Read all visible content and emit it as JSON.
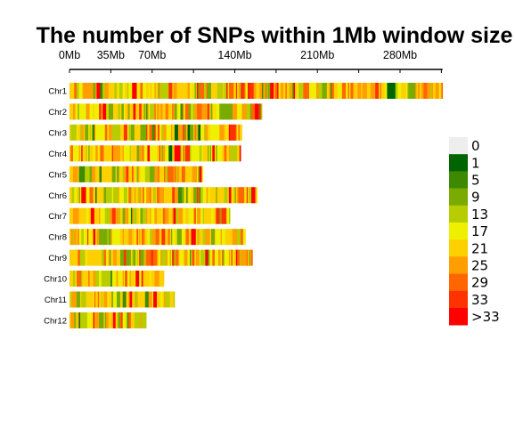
{
  "chart_data": {
    "type": "heatmap",
    "title": "The number of SNPs within 1Mb window size",
    "x_axis": {
      "unit": "Mb",
      "range": [
        0,
        316
      ],
      "ticks": [
        {
          "value": 0,
          "label": "0Mb"
        },
        {
          "value": 35,
          "label": "35Mb"
        },
        {
          "value": 70,
          "label": "70Mb"
        },
        {
          "value": 140,
          "label": "140Mb"
        },
        {
          "value": 210,
          "label": "210Mb"
        },
        {
          "value": 280,
          "label": "280Mb"
        }
      ],
      "minor_ticks": [
        105,
        175,
        245,
        315
      ]
    },
    "chromosomes": [
      {
        "name": "Chr1",
        "length_mb": 316,
        "seed": 11
      },
      {
        "name": "Chr2",
        "length_mb": 163,
        "seed": 23
      },
      {
        "name": "Chr3",
        "length_mb": 146,
        "seed": 37
      },
      {
        "name": "Chr4",
        "length_mb": 145,
        "seed": 41
      },
      {
        "name": "Chr5",
        "length_mb": 113,
        "seed": 53
      },
      {
        "name": "Chr6",
        "length_mb": 159,
        "seed": 67
      },
      {
        "name": "Chr7",
        "length_mb": 136,
        "seed": 71
      },
      {
        "name": "Chr8",
        "length_mb": 149,
        "seed": 83
      },
      {
        "name": "Chr9",
        "length_mb": 155,
        "seed": 97
      },
      {
        "name": "Chr10",
        "length_mb": 80,
        "seed": 101
      },
      {
        "name": "Chr11",
        "length_mb": 89,
        "seed": 113
      },
      {
        "name": "Chr12",
        "length_mb": 65,
        "seed": 127
      }
    ],
    "legend": {
      "placement": "right",
      "bins": [
        {
          "label": "0",
          "color": "#eeeeee"
        },
        {
          "label": "1",
          "color": "#006400"
        },
        {
          "label": "5",
          "color": "#3d8a00"
        },
        {
          "label": "9",
          "color": "#79ab00"
        },
        {
          "label": "13",
          "color": "#b8cd00"
        },
        {
          "label": "17",
          "color": "#eef000"
        },
        {
          "label": "21",
          "color": "#ffd000"
        },
        {
          "label": "25",
          "color": "#ff9e00"
        },
        {
          "label": "29",
          "color": "#ff6600"
        },
        {
          "label": "33",
          "color": "#ff3300"
        },
        {
          "label": ">33",
          "color": "#ff0000"
        }
      ]
    }
  }
}
